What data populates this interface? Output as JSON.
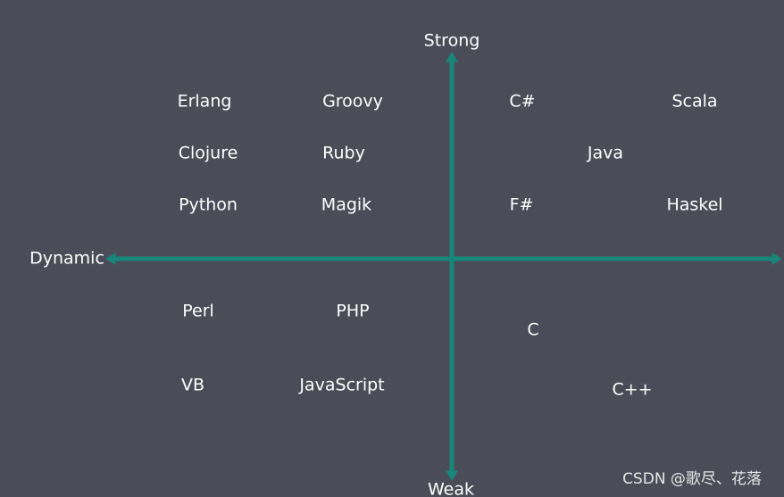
{
  "axes": {
    "top": "Strong",
    "bottom": "Weak",
    "left": "Dynamic"
  },
  "languages": [
    "Erlang",
    "Groovy",
    "C#",
    "Scala",
    "Clojure",
    "Ruby",
    "Java",
    "Python",
    "Magik",
    "F#",
    "Haskel",
    "Perl",
    "PHP",
    "C",
    "VB",
    "JavaScript",
    "C++"
  ],
  "watermark": "CSDN @歌尽、花落"
}
